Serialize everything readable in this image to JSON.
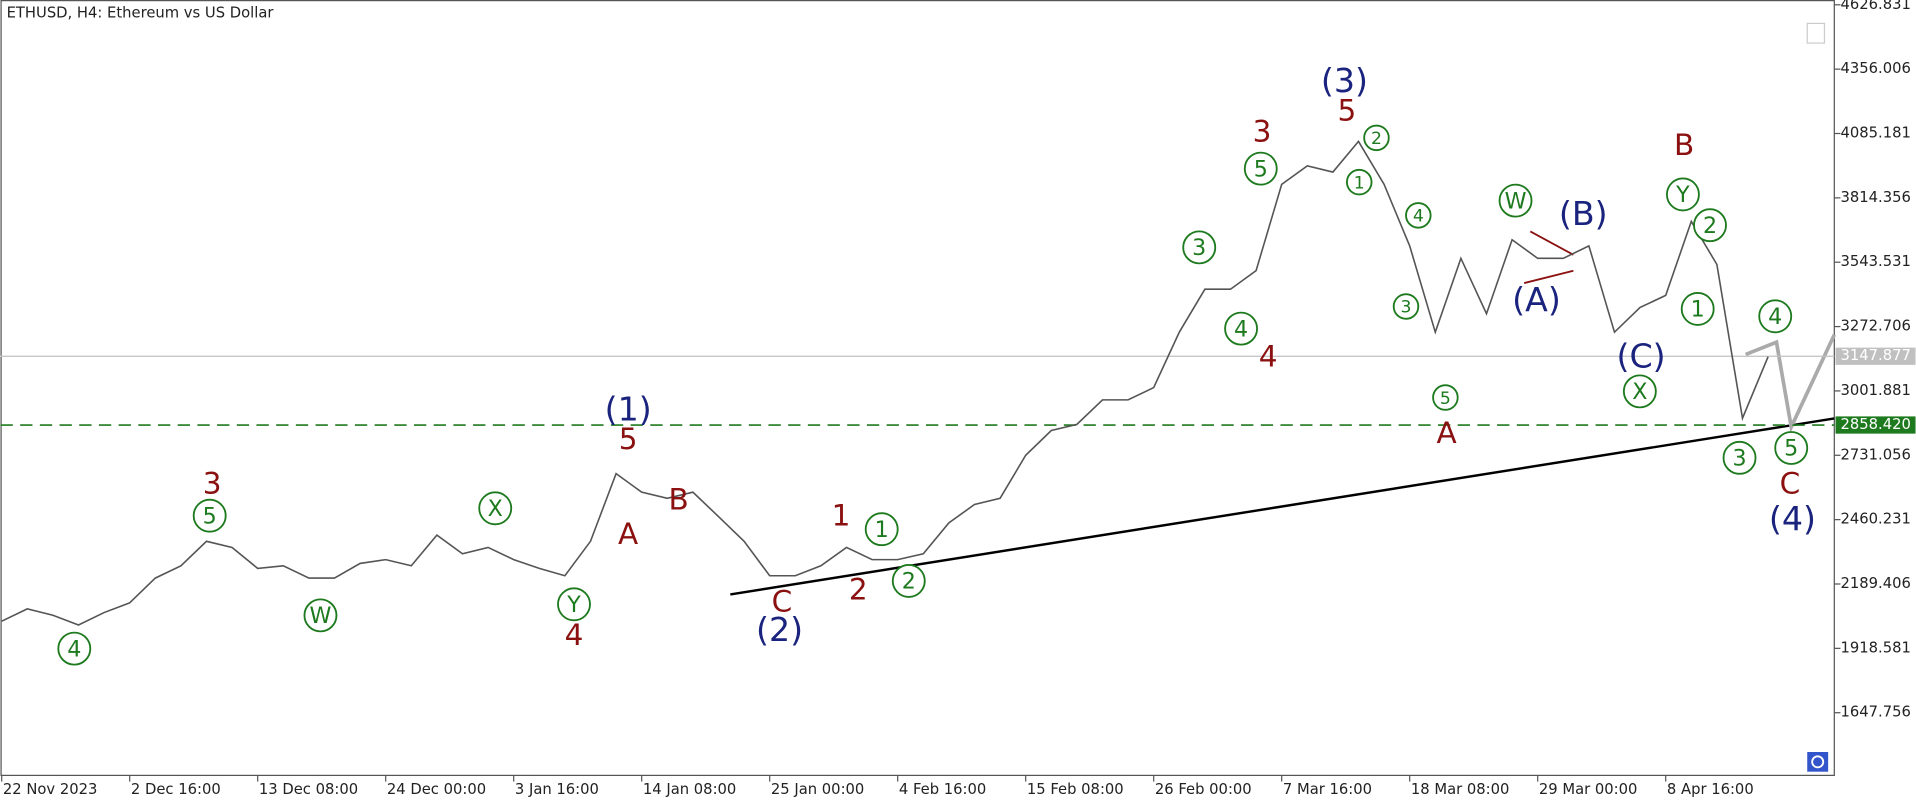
{
  "chart_data": {
    "type": "line",
    "title": "ETHUSD, H4:  Ethereum vs US Dollar",
    "color": "#555555",
    "categories": [
      "22 Nov 2023",
      null,
      null,
      null,
      null,
      "2 Dec 16:00",
      null,
      null,
      null,
      null,
      "13 Dec 08:00",
      null,
      null,
      null,
      null,
      "24 Dec 00:00",
      null,
      null,
      null,
      null,
      "3 Jan 16:00",
      null,
      null,
      null,
      null,
      "14 Jan 08:00",
      null,
      null,
      null,
      null,
      "25 Jan 00:00",
      null,
      null,
      null,
      null,
      "4 Feb 16:00",
      null,
      null,
      null,
      null,
      "15 Feb 08:00",
      null,
      null,
      null,
      null,
      "26 Feb 00:00",
      null,
      null,
      null,
      null,
      "7 Mar 16:00",
      null,
      null,
      null,
      null,
      "18 Mar 08:00",
      null,
      null,
      null,
      null,
      "29 Mar 00:00",
      null,
      null,
      null,
      null,
      "8 Apr 16:00",
      null,
      null,
      null,
      null
    ],
    "values": [
      2033,
      2085,
      2058,
      2017,
      2069,
      2110,
      2214,
      2266,
      2369,
      2343,
      2255,
      2266,
      2214,
      2214,
      2276,
      2292,
      2266,
      2395,
      2317,
      2343,
      2292,
      2255,
      2224,
      2369,
      2654,
      2576,
      2550,
      2576,
      2473,
      2369,
      2224,
      2224,
      2266,
      2343,
      2292,
      2292,
      2317,
      2447,
      2524,
      2550,
      2731,
      2835,
      2861,
      2964,
      2964,
      3016,
      3249,
      3430,
      3430,
      3508,
      3871,
      3949,
      3923,
      4052,
      3871,
      3612,
      3249,
      3560,
      3327,
      3638,
      3560,
      3560,
      3612,
      3249,
      3353,
      3404,
      3715,
      3534,
      2887,
      3146
    ],
    "ylim": [
      1384,
      4647
    ],
    "yticks": [
      1647.756,
      1918.581,
      2189.406,
      2460.231,
      2731.056,
      3001.881,
      3272.706,
      3543.531,
      3814.356,
      4085.181,
      4356.006,
      4626.831
    ],
    "current_price": 3147.877,
    "current_price_color": "#c0c0c0",
    "level": {
      "value": 2858.42,
      "label": "2858.420"
    },
    "level_color": "#1e7a1e",
    "wave_labels": [
      {
        "text": "4",
        "color": "#1e7a1e",
        "circled": true
      },
      {
        "text": "3",
        "color": "#8b1010",
        "circled": false
      },
      {
        "text": "5",
        "color": "#1e7a1e",
        "circled": true
      },
      {
        "text": "W",
        "color": "#1e7a1e",
        "circled": true
      },
      {
        "text": "X",
        "color": "#1e7a1e",
        "circled": true
      },
      {
        "text": "Y",
        "color": "#1e7a1e",
        "circled": true
      },
      {
        "text": "4",
        "color": "#8b1010",
        "circled": false
      },
      {
        "text": "(1)",
        "color": "#1a237e",
        "circled": false
      },
      {
        "text": "5",
        "color": "#8b1010",
        "circled": false
      },
      {
        "text": "A",
        "color": "#8b1010",
        "circled": false
      },
      {
        "text": "B",
        "color": "#8b1010",
        "circled": false
      },
      {
        "text": "C",
        "color": "#8b1010",
        "circled": false
      },
      {
        "text": "(2)",
        "color": "#1a237e",
        "circled": false
      },
      {
        "text": "1",
        "color": "#8b1010",
        "circled": false
      },
      {
        "text": "2",
        "color": "#8b1010",
        "circled": false
      },
      {
        "text": "1",
        "color": "#1e7a1e",
        "circled": true
      },
      {
        "text": "2",
        "color": "#1e7a1e",
        "circled": true
      },
      {
        "text": "3",
        "color": "#1e7a1e",
        "circled": true
      },
      {
        "text": "4",
        "color": "#1e7a1e",
        "circled": true
      },
      {
        "text": "5",
        "color": "#1e7a1e",
        "circled": true
      },
      {
        "text": "3",
        "color": "#8b1010",
        "circled": false
      },
      {
        "text": "4",
        "color": "#8b1010",
        "circled": false
      },
      {
        "text": "(3)",
        "color": "#1a237e",
        "circled": false
      },
      {
        "text": "5",
        "color": "#8b1010",
        "circled": false
      },
      {
        "text": "2",
        "color": "#1e7a1e",
        "circled": true
      },
      {
        "text": "1",
        "color": "#1e7a1e",
        "circled": true
      },
      {
        "text": "4",
        "color": "#1e7a1e",
        "circled": true
      },
      {
        "text": "3",
        "color": "#1e7a1e",
        "circled": true
      },
      {
        "text": "5",
        "color": "#1e7a1e",
        "circled": true
      },
      {
        "text": "A",
        "color": "#8b1010",
        "circled": false
      },
      {
        "text": "W",
        "color": "#1e7a1e",
        "circled": true
      },
      {
        "text": "(B)",
        "color": "#1a237e",
        "circled": false
      },
      {
        "text": "(A)",
        "color": "#1a237e",
        "circled": false
      },
      {
        "text": "(C)",
        "color": "#1a237e",
        "circled": false
      },
      {
        "text": "X",
        "color": "#1e7a1e",
        "circled": true
      },
      {
        "text": "B",
        "color": "#8b1010",
        "circled": false
      },
      {
        "text": "Y",
        "color": "#1e7a1e",
        "circled": true
      },
      {
        "text": "2",
        "color": "#1e7a1e",
        "circled": true
      },
      {
        "text": "1",
        "color": "#1e7a1e",
        "circled": true
      },
      {
        "text": "4",
        "color": "#1e7a1e",
        "circled": true
      },
      {
        "text": "3",
        "color": "#1e7a1e",
        "circled": true
      },
      {
        "text": "5",
        "color": "#1e7a1e",
        "circled": true
      },
      {
        "text": "C",
        "color": "#8b1010",
        "circled": false
      },
      {
        "text": "(4)",
        "color": "#1a237e",
        "circled": false
      }
    ]
  }
}
